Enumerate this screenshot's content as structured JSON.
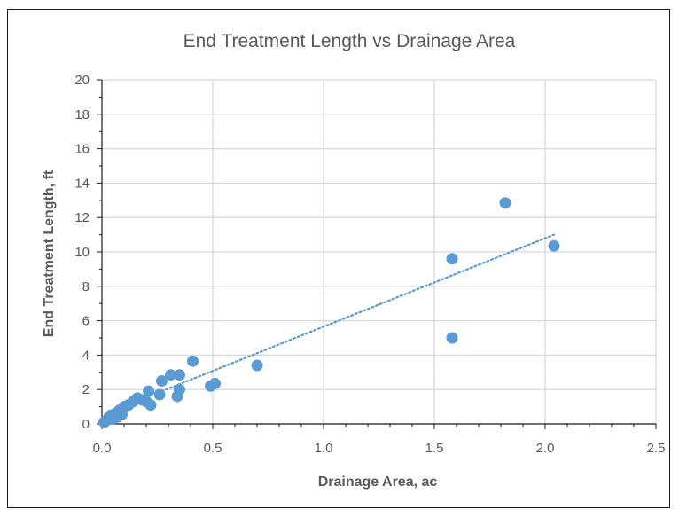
{
  "chart_data": {
    "type": "scatter",
    "title": "End Treatment Length vs Drainage Area",
    "xlabel": "Drainage Area, ac",
    "ylabel": "End Treatment Length, ft",
    "xlim": [
      0,
      2.5
    ],
    "ylim": [
      0,
      20
    ],
    "x_ticks": [
      "0.0",
      "0.5",
      "1.0",
      "1.5",
      "2.0",
      "2.5"
    ],
    "y_ticks": [
      "0",
      "2",
      "4",
      "6",
      "8",
      "10",
      "12",
      "14",
      "16",
      "18",
      "20"
    ],
    "grid": true,
    "legend": "none",
    "marker_color": "#5B9BD5",
    "points": [
      {
        "x": 0.01,
        "y": 0.1
      },
      {
        "x": 0.02,
        "y": 0.2
      },
      {
        "x": 0.03,
        "y": 0.35
      },
      {
        "x": 0.04,
        "y": 0.5
      },
      {
        "x": 0.05,
        "y": 0.3
      },
      {
        "x": 0.06,
        "y": 0.6
      },
      {
        "x": 0.07,
        "y": 0.4
      },
      {
        "x": 0.08,
        "y": 0.8
      },
      {
        "x": 0.09,
        "y": 0.55
      },
      {
        "x": 0.1,
        "y": 1.0
      },
      {
        "x": 0.12,
        "y": 1.1
      },
      {
        "x": 0.14,
        "y": 1.3
      },
      {
        "x": 0.16,
        "y": 1.5
      },
      {
        "x": 0.18,
        "y": 1.4
      },
      {
        "x": 0.2,
        "y": 1.3
      },
      {
        "x": 0.21,
        "y": 1.9
      },
      {
        "x": 0.22,
        "y": 1.1
      },
      {
        "x": 0.26,
        "y": 1.7
      },
      {
        "x": 0.27,
        "y": 2.5
      },
      {
        "x": 0.31,
        "y": 2.85
      },
      {
        "x": 0.34,
        "y": 1.6
      },
      {
        "x": 0.35,
        "y": 2.0
      },
      {
        "x": 0.35,
        "y": 2.85
      },
      {
        "x": 0.41,
        "y": 3.65
      },
      {
        "x": 0.49,
        "y": 2.2
      },
      {
        "x": 0.51,
        "y": 2.35
      },
      {
        "x": 0.7,
        "y": 3.4
      },
      {
        "x": 1.58,
        "y": 9.6
      },
      {
        "x": 1.58,
        "y": 5.0
      },
      {
        "x": 1.82,
        "y": 12.85
      },
      {
        "x": 2.04,
        "y": 10.35
      }
    ],
    "trendline": {
      "type": "linear",
      "style": "dotted",
      "from": {
        "x": 0.27,
        "y": 1.9
      },
      "to": {
        "x": 2.04,
        "y": 11.0
      }
    }
  }
}
